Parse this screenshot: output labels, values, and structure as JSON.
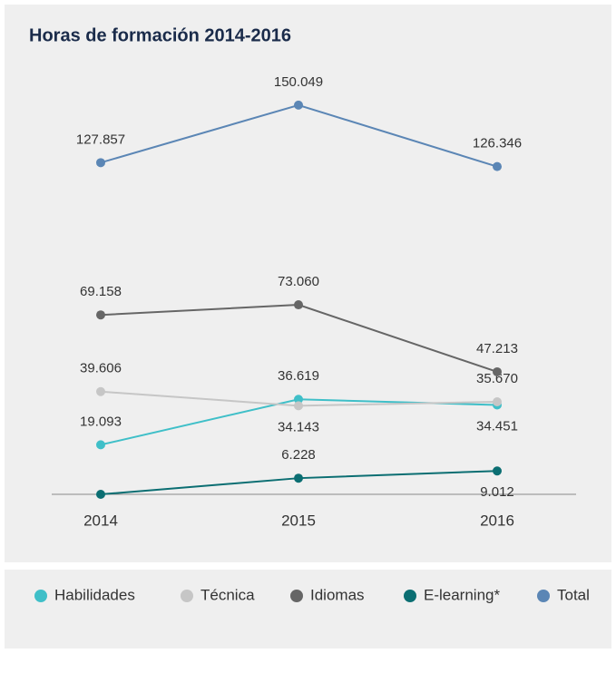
{
  "chart_data": {
    "type": "line",
    "title": "Horas de formación 2014-2016",
    "categories": [
      "2014",
      "2015",
      "2016"
    ],
    "series": [
      {
        "name": "Habilidades",
        "color": "#3fbfc8",
        "values": [
          19093,
          36619,
          34451
        ],
        "value_labels": [
          "19.093",
          "36.619",
          "34.451"
        ]
      },
      {
        "name": "Técnica",
        "color": "#c6c6c6",
        "values": [
          39606,
          34143,
          35670
        ],
        "value_labels": [
          "39.606",
          "34.143",
          "35.670"
        ]
      },
      {
        "name": "Idiomas",
        "color": "#666666",
        "values": [
          69158,
          73060,
          47213
        ],
        "value_labels": [
          "69.158",
          "73.060",
          "47.213"
        ]
      },
      {
        "name": "E-learning*",
        "color": "#0b6e72",
        "values": [
          0,
          6228,
          9012
        ],
        "value_labels": [
          null,
          "6.228",
          "9.012"
        ]
      },
      {
        "name": "Total",
        "color": "#5b86b5",
        "values": [
          127857,
          150049,
          126346
        ],
        "value_labels": [
          "127.857",
          "150.049",
          "126.346"
        ]
      }
    ],
    "ylim": [
      0,
      160000
    ]
  }
}
